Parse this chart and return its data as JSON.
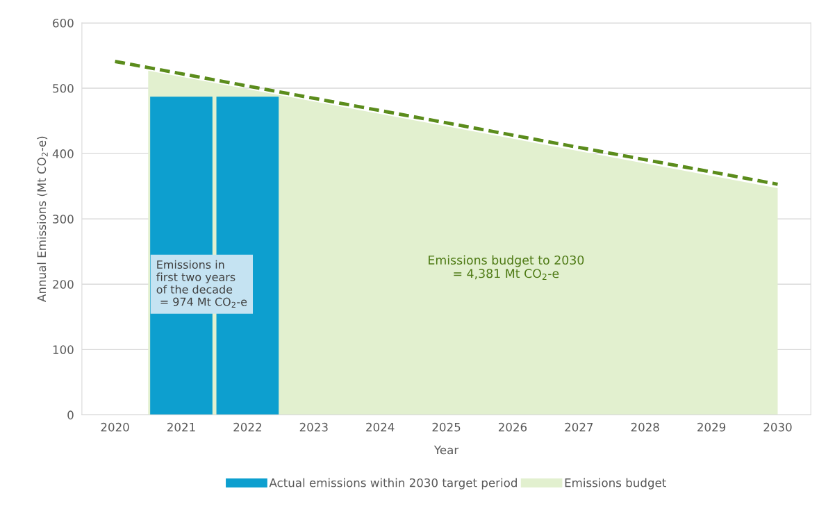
{
  "chart_data": {
    "type": "bar",
    "xlabel": "Year",
    "ylabel": "Annual Emissions (Mt CO$_{2}$-e)",
    "xlim": [
      2019.5,
      2030.5
    ],
    "xticks": [
      2020,
      2021,
      2022,
      2023,
      2024,
      2025,
      2026,
      2027,
      2028,
      2029,
      2030
    ],
    "ylim": [
      0,
      600
    ],
    "yticks": [
      0,
      100,
      200,
      300,
      400,
      500,
      600
    ],
    "grid": "y",
    "legend": "bottom",
    "series": [
      {
        "name": "Actual emissions within 2030 target period",
        "color": "#0d9fcf",
        "x": [
          2021,
          2022
        ],
        "values": [
          487,
          487
        ]
      },
      {
        "type": "area",
        "name": "Emissions budget",
        "color": "#e2f0cf",
        "x": [
          2020.5,
          2030
        ],
        "values": [
          527,
          347
        ]
      },
      {
        "type": "line",
        "color": "#5b8c1c",
        "line_style": "dashed",
        "x": [
          2020,
          2030
        ],
        "values": [
          541,
          353
        ]
      }
    ],
    "annotations": [
      "Emissions in\nfirst two years\nof the decade\n = 974 Mt CO$_{2}$-e",
      "Emissions budget to 2030\n= 4,381 Mt CO$_{2}$-e"
    ]
  }
}
